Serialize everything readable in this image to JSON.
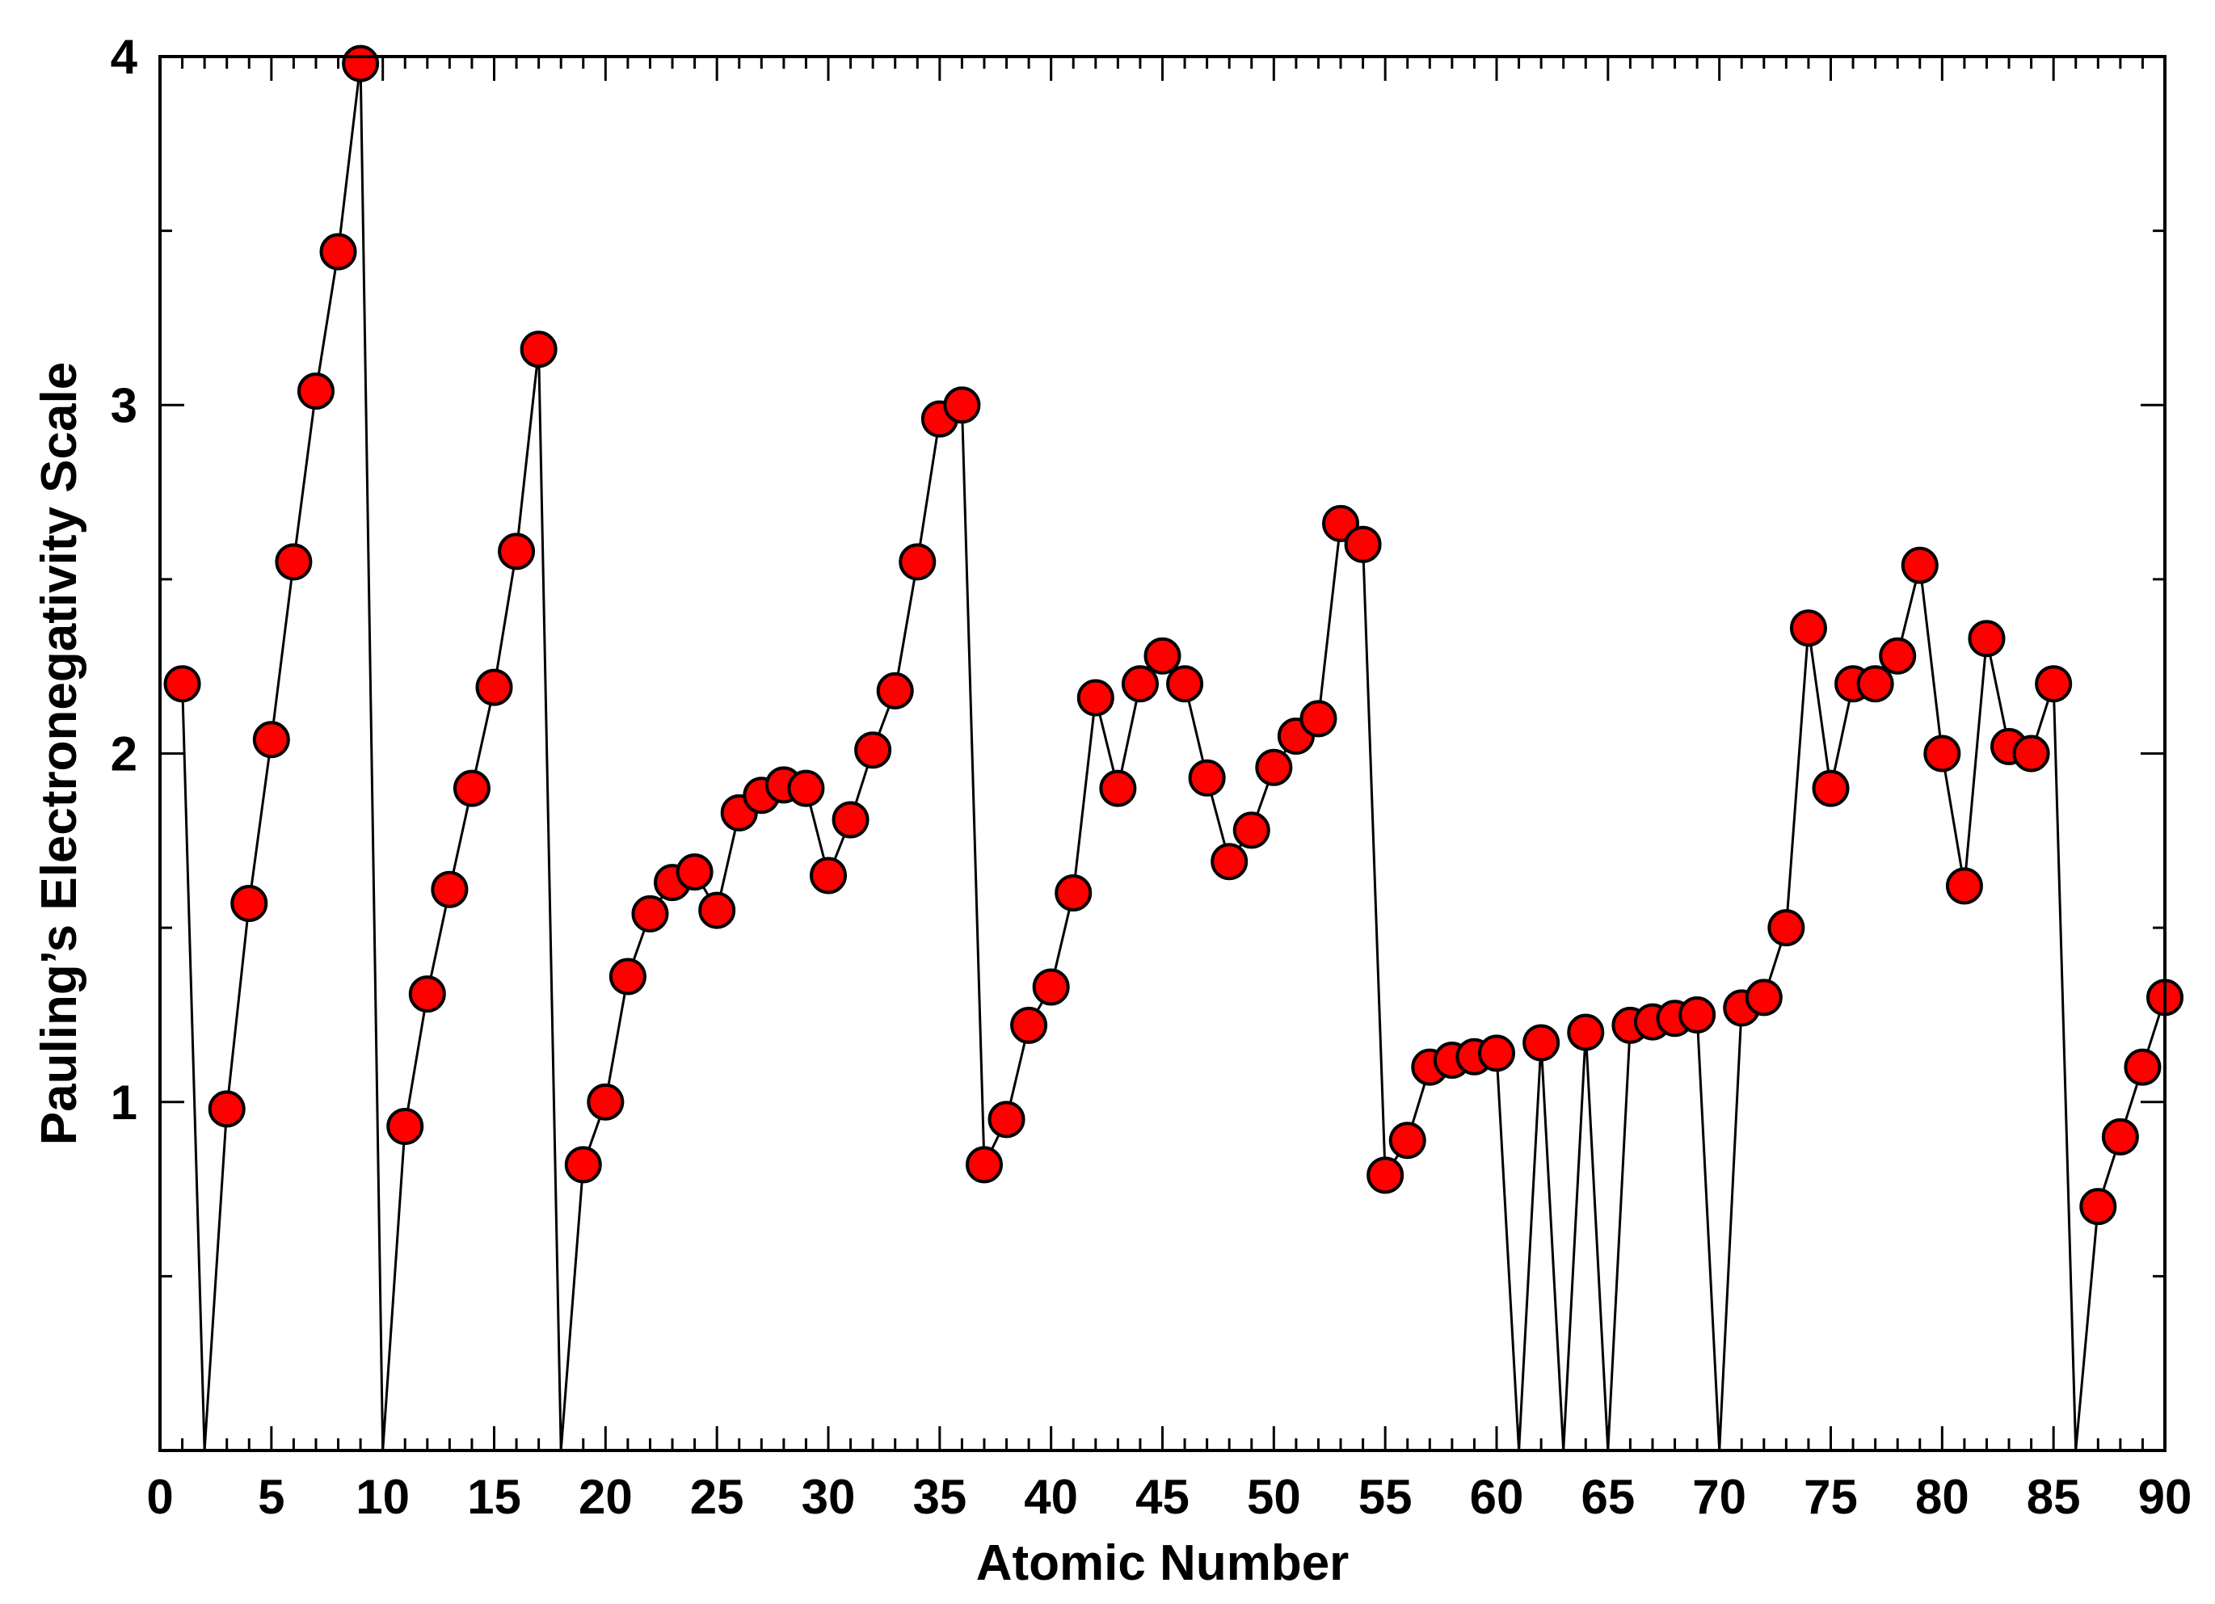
{
  "chart_data": {
    "type": "line",
    "title": "",
    "xlabel": "Atomic Number",
    "ylabel": "Pauling’s Electronegativity Scale",
    "xlim": [
      0,
      90
    ],
    "ylim": [
      0,
      4
    ],
    "x_ticks": [
      0,
      5,
      10,
      15,
      20,
      25,
      30,
      35,
      40,
      45,
      50,
      55,
      60,
      65,
      70,
      75,
      80,
      85,
      90
    ],
    "x_tick_labels": [
      "0",
      "5",
      "10",
      "15",
      "20",
      "25",
      "30",
      "35",
      "40",
      "45",
      "50",
      "55",
      "60",
      "65",
      "70",
      "75",
      "80",
      "85",
      "90"
    ],
    "y_ticks": [
      1,
      2,
      3,
      4
    ],
    "y_tick_labels": [
      "1",
      "2",
      "3",
      "4"
    ],
    "y_minor_ticks": [
      0.5,
      1.5,
      2.5,
      3.5
    ],
    "grid": false,
    "line_color": "#000000",
    "marker_fill": "#ff0000",
    "marker_edge": "#000000",
    "series": [
      {
        "x": [
          1,
          2,
          3,
          4,
          5,
          6,
          7,
          8,
          9,
          10,
          11,
          12,
          13,
          14,
          15,
          16,
          17,
          18,
          19,
          20,
          21,
          22,
          23,
          24,
          25,
          26,
          27,
          28,
          29,
          30,
          31,
          32,
          33,
          34,
          35,
          36,
          37,
          38,
          39,
          40,
          41,
          42,
          43,
          44,
          45,
          46,
          47,
          48,
          49,
          50,
          51,
          52,
          53,
          54,
          55,
          56,
          57,
          58,
          59,
          60,
          61,
          62,
          63,
          64,
          65,
          66,
          67,
          68,
          69,
          70,
          71,
          72,
          73,
          74,
          75,
          76,
          77,
          78,
          79,
          80,
          81,
          82,
          83,
          84,
          85,
          86,
          87,
          88,
          89,
          90
        ],
        "y": [
          2.2,
          0,
          0.98,
          1.57,
          2.04,
          2.55,
          3.04,
          3.44,
          3.98,
          0,
          0.93,
          1.31,
          1.61,
          1.9,
          2.19,
          2.58,
          3.16,
          0,
          0.82,
          1.0,
          1.36,
          1.54,
          1.63,
          1.66,
          1.55,
          1.83,
          1.88,
          1.91,
          1.9,
          1.65,
          1.81,
          2.01,
          2.18,
          2.55,
          2.96,
          3.0,
          0.82,
          0.95,
          1.22,
          1.33,
          1.6,
          2.16,
          1.9,
          2.2,
          2.28,
          2.2,
          1.93,
          1.69,
          1.78,
          1.96,
          2.05,
          2.1,
          2.66,
          2.6,
          0.79,
          0.89,
          1.1,
          1.12,
          1.13,
          1.14,
          0,
          1.17,
          0,
          1.2,
          0,
          1.22,
          1.23,
          1.24,
          1.25,
          0,
          1.27,
          1.3,
          1.5,
          2.36,
          1.9,
          2.2,
          2.2,
          2.28,
          2.54,
          2.0,
          1.62,
          2.33,
          2.02,
          2.0,
          2.2,
          0,
          0.7,
          0.9,
          1.1,
          1.3
        ],
        "marker_hidden_when_zero": true
      }
    ]
  }
}
